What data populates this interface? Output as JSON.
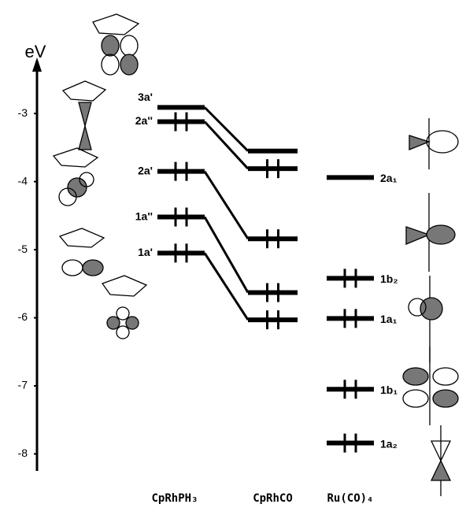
{
  "axis": {
    "label": "eV",
    "ylim": [
      -8.25,
      -2.2
    ],
    "ticks": [
      -3,
      -4,
      -5,
      -6,
      -7,
      -8
    ]
  },
  "columns": [
    {
      "name": "CpRhPH₃",
      "levels": [
        {
          "label": "3a'",
          "energy": -2.91,
          "occupied": false
        },
        {
          "label": "2a''",
          "energy": -3.12,
          "occupied": true
        },
        {
          "label": "2a'",
          "energy": -3.85,
          "occupied": true
        },
        {
          "label": "1a''",
          "energy": -4.52,
          "occupied": true
        },
        {
          "label": "1a'",
          "energy": -5.05,
          "occupied": true
        }
      ]
    },
    {
      "name": "CpRhCO",
      "levels": [
        {
          "energy": -3.55,
          "occupied": false
        },
        {
          "energy": -3.81,
          "occupied": true
        },
        {
          "energy": -4.84,
          "occupied": true
        },
        {
          "energy": -5.63,
          "occupied": true
        },
        {
          "energy": -6.03,
          "occupied": true
        }
      ]
    },
    {
      "name": "Ru(CO)₄",
      "levels": [
        {
          "label": "2a₁",
          "energy": -3.94,
          "occupied": false
        },
        {
          "label": "1b₂",
          "energy": -5.42,
          "occupied": true
        },
        {
          "label": "1a₁",
          "energy": -6.01,
          "occupied": true
        },
        {
          "label": "1b₁",
          "energy": -7.05,
          "occupied": true
        },
        {
          "label": "1a₂",
          "energy": -7.84,
          "occupied": true
        }
      ]
    }
  ]
}
